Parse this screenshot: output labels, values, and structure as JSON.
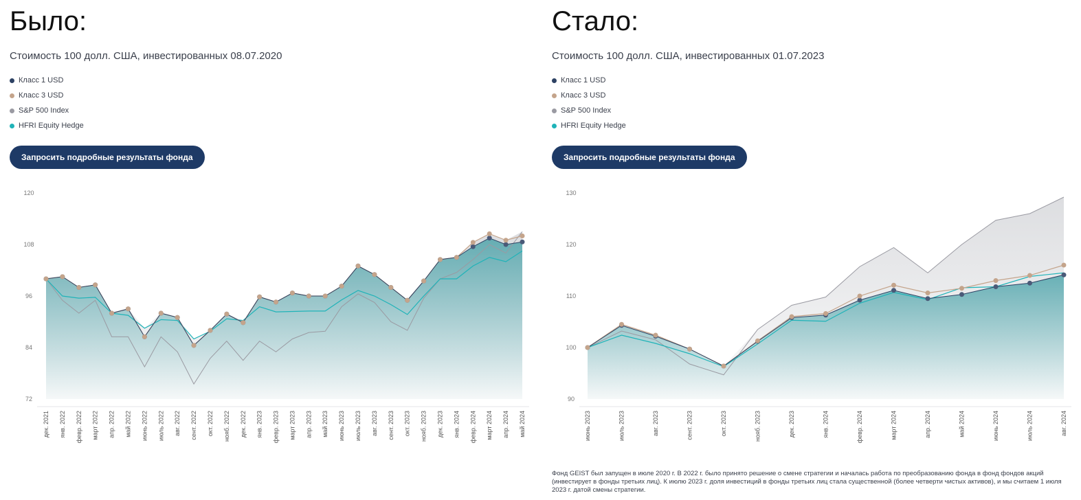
{
  "left": {
    "heading": "Было:",
    "subtitle": "Стоимость 100 долл. США, инвестированных 08.07.2020",
    "legend": [
      {
        "label": "Класс 1 USD",
        "color": "#2d4263"
      },
      {
        "label": "Класс 3 USD",
        "color": "#c4a48b"
      },
      {
        "label": "S&P 500 Index",
        "color": "#9a9aa2"
      },
      {
        "label": "HFRI Equity Hedge",
        "color": "#1fb3b8"
      }
    ],
    "button_label": "Запросить подробные результаты фонда"
  },
  "right": {
    "heading": "Стало:",
    "subtitle": "Стоимость 100 долл. США, инвестированных 01.07.2023",
    "legend": [
      {
        "label": "Класс 1 USD",
        "color": "#2d4263"
      },
      {
        "label": "Класс 3 USD",
        "color": "#c4a48b"
      },
      {
        "label": "S&P 500 Index",
        "color": "#9a9aa2"
      },
      {
        "label": "HFRI Equity Hedge",
        "color": "#1fb3b8"
      }
    ],
    "button_label": "Запросить подробные результаты фонда",
    "footnote": "Фонд GEIST был запущен в июле 2020 г. В 2022 г. было принято решение о смене стратегии и началась работа по преобразованию фонда в фонд фондов акций (инвестирует в фонды третьих лиц). К июлю 2023 г. доля инвестиций в фонды третьих лиц стала существенной (более четверти чистых активов), и мы считаем 1 июля 2023 г. датой смены стратегии."
  },
  "chart_data": [
    {
      "type": "line",
      "title": "Стоимость 100 долл. США, инвестированных 08.07.2020",
      "ylim": [
        72,
        120
      ],
      "yticks": [
        72,
        84,
        96,
        108,
        120
      ],
      "categories": [
        "дек. 2021",
        "янв. 2022",
        "февр. 2022",
        "март 2022",
        "апр. 2022",
        "май 2022",
        "июнь 2022",
        "июль 2022",
        "авг. 2022",
        "сент. 2022",
        "окт. 2022",
        "нояб. 2022",
        "дек. 2022",
        "янв. 2023",
        "февр. 2023",
        "март 2023",
        "апр. 2023",
        "май 2023",
        "июнь 2023",
        "июль 2023",
        "авг. 2023",
        "сент. 2023",
        "окт. 2023",
        "нояб. 2023",
        "дек. 2023",
        "янв. 2024",
        "февр. 2024",
        "март 2024",
        "апр. 2024",
        "май 2024"
      ],
      "series": [
        {
          "name": "Класс 1 USD",
          "color": "#2d4263",
          "values": [
            100,
            100.5,
            98,
            98.6,
            92,
            93,
            86.5,
            92,
            91,
            84.5,
            88,
            91.8,
            89.8,
            95.8,
            94.6,
            96.7,
            96,
            96,
            98.3,
            103,
            101,
            98,
            95,
            99.5,
            104.5,
            105,
            107.5,
            109.5,
            108,
            108.6
          ]
        },
        {
          "name": "Класс 3 USD",
          "color": "#c4a48b",
          "values": [
            100,
            100.5,
            98,
            98.6,
            92,
            93,
            86.5,
            92,
            91,
            84.5,
            88,
            91.8,
            89.8,
            95.8,
            94.6,
            96.7,
            96,
            96,
            98.3,
            103,
            101,
            98,
            95,
            99.5,
            104.5,
            105,
            108.5,
            110.5,
            109,
            110
          ]
        },
        {
          "name": "S&P 500 Index",
          "color": "#9a9aa2",
          "values": [
            100,
            95,
            92,
            95,
            86.5,
            86.5,
            79.5,
            86.5,
            83,
            75.5,
            81.5,
            85.5,
            81,
            85.5,
            83,
            86,
            87.5,
            87.8,
            93.5,
            96.5,
            94.5,
            90,
            88,
            95.5,
            100,
            101.5,
            104.5,
            108,
            106,
            111
          ]
        },
        {
          "name": "HFRI Equity Hedge",
          "color": "#1fb3b8",
          "values": [
            100,
            96,
            95.5,
            95.7,
            92,
            91.5,
            88.5,
            90.5,
            90.3,
            86,
            87.8,
            90.7,
            90.3,
            93.5,
            92.3,
            92.4,
            92.5,
            92.5,
            95.1,
            97.3,
            96,
            94,
            91.7,
            96,
            100,
            100,
            103,
            105,
            104,
            106.5
          ]
        }
      ]
    },
    {
      "type": "line",
      "title": "Стоимость 100 долл. США, инвестированных 01.07.2023",
      "ylim": [
        90,
        130
      ],
      "yticks": [
        90,
        100,
        110,
        120,
        130
      ],
      "categories": [
        "июнь 2023",
        "июль 2023",
        "авг. 2023",
        "сент. 2023",
        "окт. 2023",
        "нояб. 2023",
        "дек. 2023",
        "янв. 2024",
        "февр. 2024",
        "март 2024",
        "апр. 2024",
        "май 2024",
        "июнь 2024",
        "июль 2024",
        "авг. 2024"
      ],
      "series": [
        {
          "name": "Класс 1 USD",
          "color": "#2d4263",
          "values": [
            100,
            104.3,
            102.2,
            99.7,
            96.4,
            101.2,
            105.8,
            106.3,
            109.2,
            111.1,
            109.5,
            110.3,
            111.8,
            112.5,
            114.1
          ]
        },
        {
          "name": "Класс 3 USD",
          "color": "#c4a48b",
          "values": [
            100,
            104.5,
            102.4,
            99.7,
            96.4,
            101.3,
            106,
            106.6,
            110,
            112.1,
            110.6,
            111.5,
            113,
            114,
            116
          ]
        },
        {
          "name": "S&P 500 Index",
          "color": "#9a9aa2",
          "values": [
            100,
            103.2,
            101.5,
            96.8,
            94.7,
            103.5,
            108.2,
            109.8,
            115.7,
            119.4,
            114.5,
            120,
            124.7,
            126,
            129.2
          ]
        },
        {
          "name": "HFRI Equity Hedge",
          "color": "#1fb3b8",
          "values": [
            100,
            102.4,
            100.8,
            98.8,
            96.3,
            100.7,
            105.3,
            105.1,
            108.6,
            110.7,
            109.3,
            111.6,
            111.8,
            113.8,
            114.5
          ]
        }
      ]
    }
  ]
}
